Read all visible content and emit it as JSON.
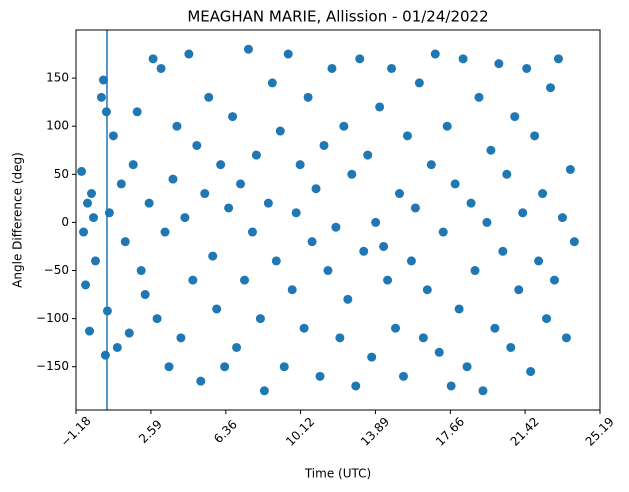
{
  "chart_data": {
    "type": "scatter",
    "title": "MEAGHAN MARIE, Allission - 01/24/2022",
    "xlabel": "Time (UTC)",
    "ylabel": "Angle Difference (deg)",
    "color": "#1f77b4",
    "vline": 0.38,
    "xlim": [
      -1.18,
      25.19
    ],
    "xticks": [
      {
        "value": -1.18,
        "label": "−1.18"
      },
      2.59,
      6.36,
      10.12,
      13.89,
      17.66,
      21.42,
      25.19
    ],
    "ylim": [
      -195,
      200
    ],
    "yticks": [
      {
        "value": -150,
        "label": "−150"
      },
      {
        "value": -100,
        "label": "−100"
      },
      {
        "value": -50,
        "label": "−50"
      },
      0,
      50,
      100,
      150
    ],
    "x": [
      -0.9,
      -0.8,
      -0.7,
      -0.6,
      -0.5,
      -0.4,
      -0.3,
      -0.2,
      0.1,
      0.2,
      0.3,
      0.35,
      0.4,
      0.5,
      0.7,
      0.9,
      1.1,
      1.3,
      1.5,
      1.7,
      1.9,
      2.1,
      2.3,
      2.5,
      2.7,
      2.9,
      3.1,
      3.3,
      3.5,
      3.7,
      3.9,
      4.1,
      4.3,
      4.5,
      4.7,
      4.9,
      5.1,
      5.3,
      5.5,
      5.7,
      5.9,
      6.1,
      6.3,
      6.5,
      6.7,
      6.9,
      7.1,
      7.3,
      7.5,
      7.7,
      7.9,
      8.1,
      8.3,
      8.5,
      8.7,
      8.9,
      9.1,
      9.3,
      9.5,
      9.7,
      9.9,
      10.1,
      10.3,
      10.5,
      10.7,
      10.9,
      11.1,
      11.3,
      11.5,
      11.7,
      11.9,
      12.1,
      12.3,
      12.5,
      12.7,
      12.9,
      13.1,
      13.3,
      13.5,
      13.7,
      13.9,
      14.1,
      14.3,
      14.5,
      14.7,
      14.9,
      15.1,
      15.3,
      15.5,
      15.7,
      15.9,
      16.1,
      16.3,
      16.5,
      16.7,
      16.9,
      17.1,
      17.3,
      17.5,
      17.7,
      17.9,
      18.1,
      18.3,
      18.5,
      18.7,
      18.9,
      19.1,
      19.3,
      19.5,
      19.7,
      19.9,
      20.1,
      20.3,
      20.5,
      20.7,
      20.9,
      21.1,
      21.3,
      21.5,
      21.7,
      21.9,
      22.1,
      22.3,
      22.5,
      22.7,
      22.9,
      23.1,
      23.3,
      23.5,
      23.7,
      23.9
    ],
    "values": [
      53,
      -10,
      -65,
      20,
      -113,
      30,
      5,
      -40,
      130,
      148,
      -138,
      115,
      -92,
      10,
      90,
      -130,
      40,
      -20,
      -115,
      60,
      115,
      -50,
      -75,
      20,
      170,
      -100,
      160,
      -10,
      -150,
      45,
      100,
      -120,
      5,
      175,
      -60,
      80,
      -165,
      30,
      130,
      -35,
      -90,
      60,
      -150,
      15,
      110,
      -130,
      40,
      -60,
      180,
      -10,
      70,
      -100,
      -175,
      20,
      145,
      -40,
      95,
      -150,
      175,
      -70,
      10,
      60,
      -110,
      130,
      -20,
      35,
      -160,
      80,
      -50,
      160,
      -5,
      -120,
      100,
      -80,
      50,
      -170,
      170,
      -30,
      70,
      -140,
      0,
      120,
      -25,
      -60,
      160,
      -110,
      30,
      -160,
      90,
      -40,
      15,
      145,
      -120,
      -70,
      60,
      175,
      -135,
      -10,
      100,
      -170,
      40,
      -90,
      170,
      -150,
      20,
      -50,
      130,
      -175,
      0,
      75,
      -110,
      165,
      -30,
      50,
      -130,
      110,
      -70,
      10,
      160,
      -155,
      90,
      -40,
      30,
      -100,
      140,
      -60,
      170,
      5,
      -120,
      55,
      -20
    ]
  }
}
